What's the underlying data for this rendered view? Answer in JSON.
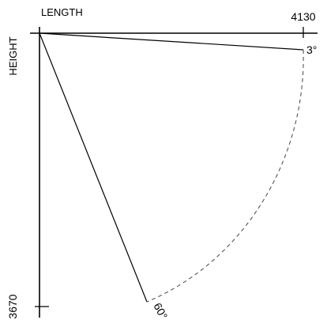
{
  "axes": {
    "length_label": "LENGTH",
    "height_label": "HEIGHT",
    "length_max": "4130",
    "height_max": "3670"
  },
  "angles": {
    "min_label": "3°",
    "max_label": "60°",
    "min_deg": 3,
    "max_deg": 60
  },
  "colors": {
    "line": "#000000",
    "arc": "#555555",
    "background": "#ffffff"
  }
}
